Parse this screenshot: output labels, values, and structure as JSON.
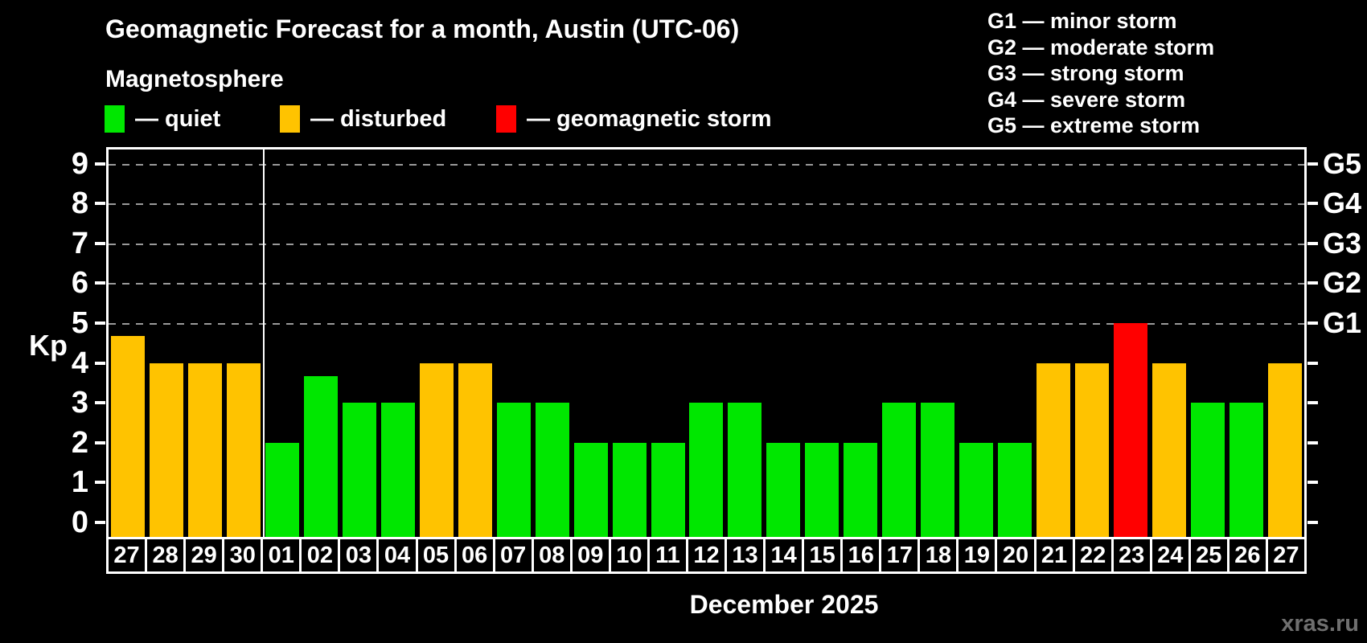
{
  "page": {
    "title": "Geomagnetic Forecast for a month, Austin (UTC-06)",
    "subtitle": "Magnetosphere",
    "month_label": "December 2025",
    "watermark": "xras.ru"
  },
  "legend": {
    "items": [
      {
        "status": "quiet",
        "label": "— quiet"
      },
      {
        "status": "disturbed",
        "label": "— disturbed"
      },
      {
        "status": "storm",
        "label": "— geomagnetic storm"
      }
    ]
  },
  "g_legend": [
    "G1 — minor storm",
    "G2 — moderate storm",
    "G3 — strong storm",
    "G4 — severe storm",
    "G5 — extreme storm"
  ],
  "colors": {
    "quiet": "#00e700",
    "disturbed": "#ffc300",
    "storm": "#ff0000",
    "gridline": "#9a9a9a",
    "axis": "#ffffff",
    "watermark": "#6f6f6f",
    "background": "#000000"
  },
  "axis": {
    "kp_label": "Kp",
    "y_ticks": [
      0,
      1,
      2,
      3,
      4,
      5,
      6,
      7,
      8,
      9
    ],
    "g_scale": [
      {
        "kp": 5,
        "label": "G1"
      },
      {
        "kp": 6,
        "label": "G2"
      },
      {
        "kp": 7,
        "label": "G3"
      },
      {
        "kp": 8,
        "label": "G4"
      },
      {
        "kp": 9,
        "label": "G5"
      }
    ]
  },
  "chart_data": {
    "type": "bar",
    "title": "Geomagnetic Forecast for a month, Austin (UTC-06)",
    "ylabel": "Kp",
    "xlabel": "December 2025",
    "ylim": [
      0,
      9.4
    ],
    "grid": true,
    "grid_levels": [
      5,
      6,
      7,
      8,
      9
    ],
    "month_start_index": 4,
    "bars": [
      {
        "day": "27",
        "kp": 4.67,
        "status": "disturbed"
      },
      {
        "day": "28",
        "kp": 4,
        "status": "disturbed"
      },
      {
        "day": "29",
        "kp": 4,
        "status": "disturbed"
      },
      {
        "day": "30",
        "kp": 4,
        "status": "disturbed"
      },
      {
        "day": "01",
        "kp": 2,
        "status": "quiet"
      },
      {
        "day": "02",
        "kp": 3.67,
        "status": "quiet"
      },
      {
        "day": "03",
        "kp": 3,
        "status": "quiet"
      },
      {
        "day": "04",
        "kp": 3,
        "status": "quiet"
      },
      {
        "day": "05",
        "kp": 4,
        "status": "disturbed"
      },
      {
        "day": "06",
        "kp": 4,
        "status": "disturbed"
      },
      {
        "day": "07",
        "kp": 3,
        "status": "quiet"
      },
      {
        "day": "08",
        "kp": 3,
        "status": "quiet"
      },
      {
        "day": "09",
        "kp": 2,
        "status": "quiet"
      },
      {
        "day": "10",
        "kp": 2,
        "status": "quiet"
      },
      {
        "day": "11",
        "kp": 2,
        "status": "quiet"
      },
      {
        "day": "12",
        "kp": 3,
        "status": "quiet"
      },
      {
        "day": "13",
        "kp": 3,
        "status": "quiet"
      },
      {
        "day": "14",
        "kp": 2,
        "status": "quiet"
      },
      {
        "day": "15",
        "kp": 2,
        "status": "quiet"
      },
      {
        "day": "16",
        "kp": 2,
        "status": "quiet"
      },
      {
        "day": "17",
        "kp": 3,
        "status": "quiet"
      },
      {
        "day": "18",
        "kp": 3,
        "status": "quiet"
      },
      {
        "day": "19",
        "kp": 2,
        "status": "quiet"
      },
      {
        "day": "20",
        "kp": 2,
        "status": "quiet"
      },
      {
        "day": "21",
        "kp": 4,
        "status": "disturbed"
      },
      {
        "day": "22",
        "kp": 4,
        "status": "disturbed"
      },
      {
        "day": "23",
        "kp": 5,
        "status": "storm"
      },
      {
        "day": "24",
        "kp": 4,
        "status": "disturbed"
      },
      {
        "day": "25",
        "kp": 3,
        "status": "quiet"
      },
      {
        "day": "26",
        "kp": 3,
        "status": "quiet"
      },
      {
        "day": "27",
        "kp": 4,
        "status": "disturbed"
      }
    ]
  }
}
